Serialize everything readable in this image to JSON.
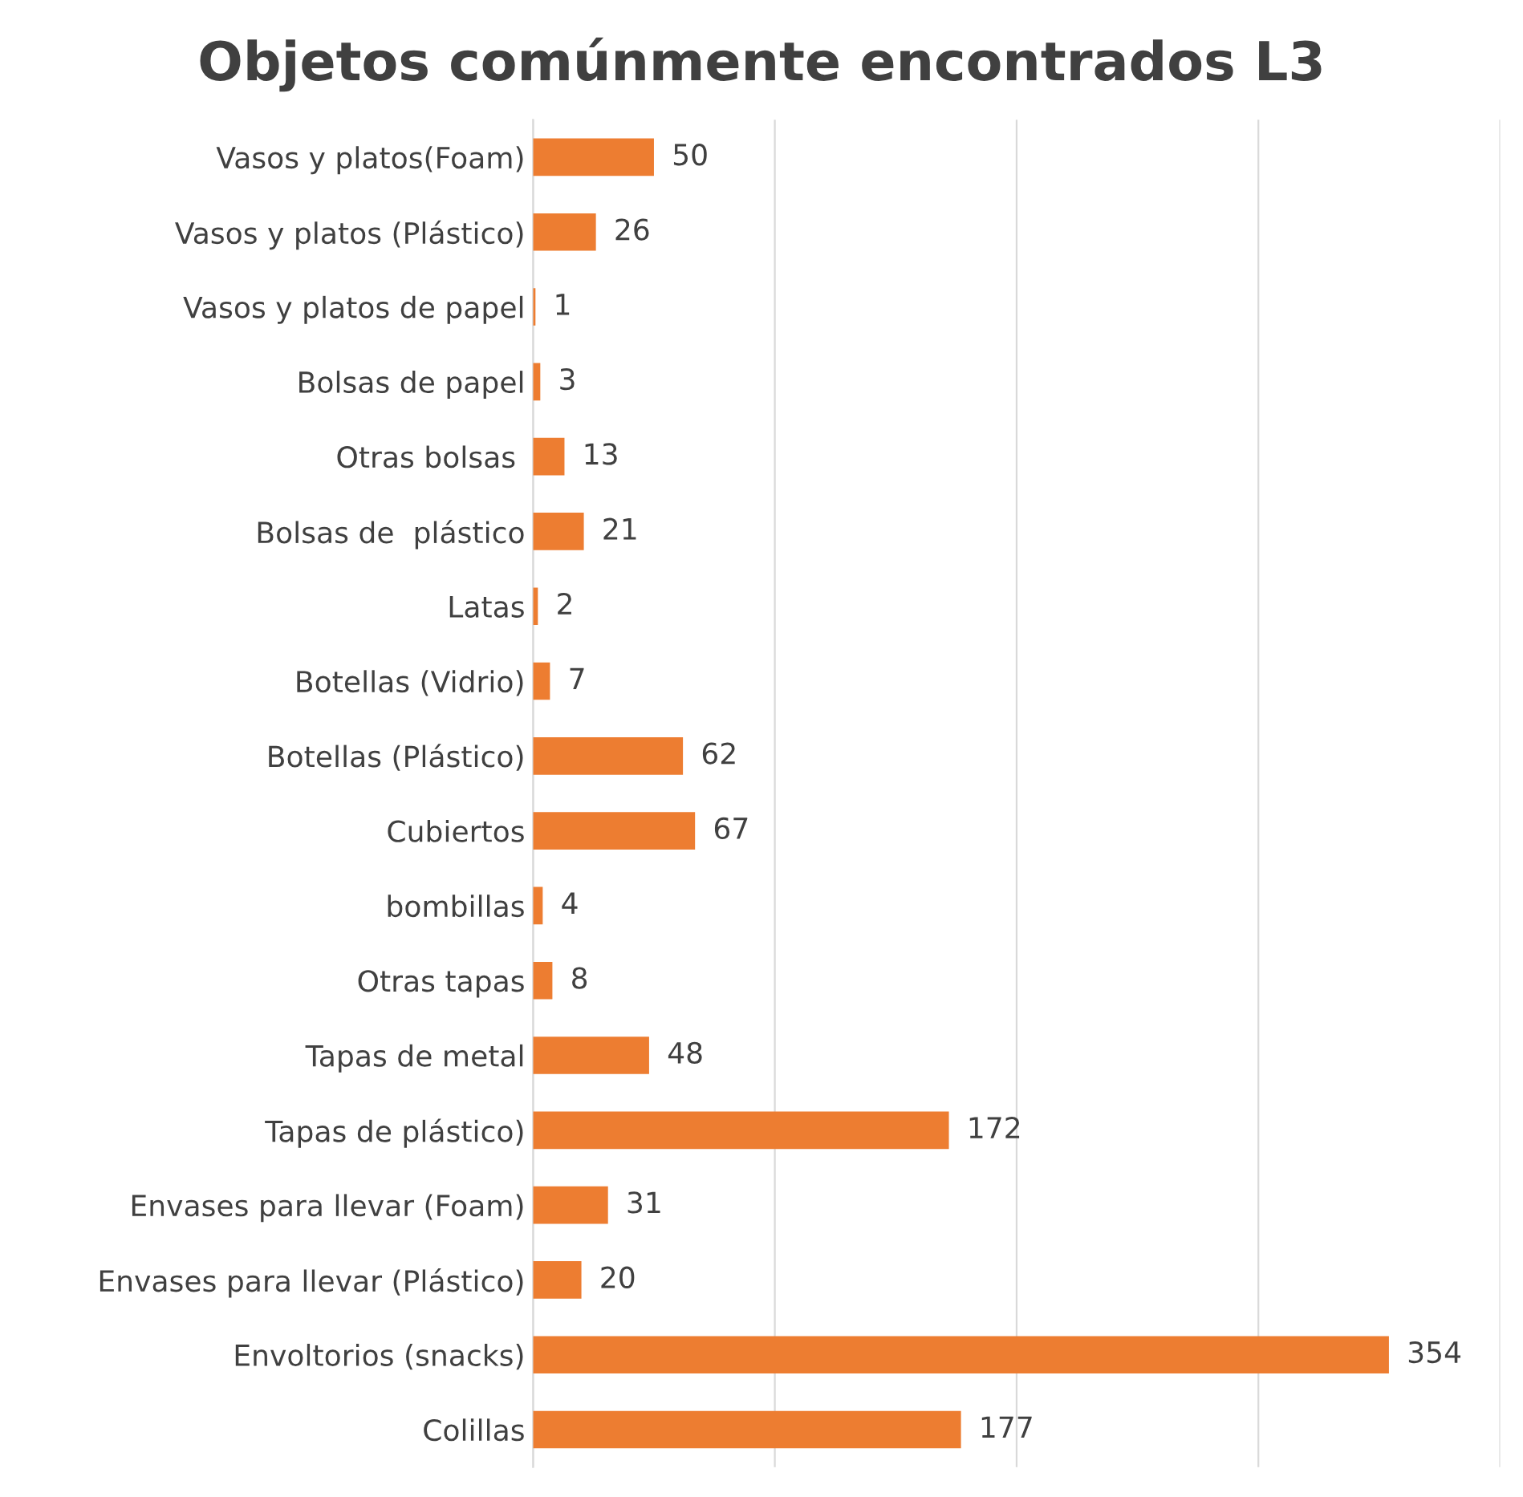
{
  "chart_data": {
    "type": "bar",
    "orientation": "horizontal",
    "title": "Objetos comúnmente encontrados L3",
    "categories": [
      "Vasos y platos(Foam)",
      "Vasos y platos (Plástico)",
      "Vasos y platos de papel",
      "Bolsas de papel",
      "Otras bolsas ",
      "Bolsas de  plástico",
      "Latas",
      "Botellas (Vidrio)",
      "Botellas (Plástico)",
      "Cubiertos",
      "bombillas",
      "Otras tapas",
      "Tapas de metal",
      "Tapas de plástico)",
      "Envases para llevar (Foam)",
      "Envases para llevar (Plástico)",
      "Envoltorios (snacks)",
      "Colillas"
    ],
    "values": [
      50,
      26,
      1,
      3,
      13,
      21,
      2,
      7,
      62,
      67,
      4,
      8,
      48,
      172,
      31,
      20,
      354,
      177
    ],
    "color": "#ed7d31",
    "data_labels": true,
    "xlim": [
      0,
      400
    ],
    "xticks": [
      {
        "value": 0,
        "label": null
      },
      {
        "value": 100,
        "label": null
      },
      {
        "value": 200,
        "label": null
      },
      {
        "value": 300,
        "label": null
      },
      {
        "value": 400,
        "label": null
      }
    ],
    "tick_labels": "y",
    "grid": "x",
    "legend": false
  }
}
